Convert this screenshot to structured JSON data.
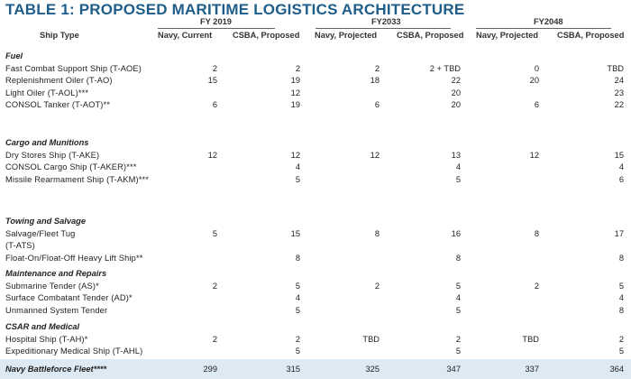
{
  "title": "TABLE 1: PROPOSED MARITIME LOGISTICS ARCHITECTURE",
  "year_groups": [
    "FY 2019",
    "FY2033",
    "FY2048"
  ],
  "columns": [
    "Ship Type",
    "Navy, Current",
    "CSBA, Proposed",
    "Navy, Projected",
    "CSBA, Proposed",
    "Navy, Projected",
    "CSBA, Proposed"
  ],
  "sections": [
    {
      "name": "Fuel",
      "rows": [
        {
          "label": "Fast Combat Support Ship (T-AOE)",
          "values": [
            "2",
            "2",
            "2",
            "2 + TBD",
            "0",
            "TBD"
          ]
        },
        {
          "label": "Replenishment Oiler (T-AO)",
          "values": [
            "15",
            "19",
            "18",
            "22",
            "20",
            "24"
          ]
        },
        {
          "label": "Light Oiler (T-AOL)***",
          "values": [
            "",
            "12",
            "",
            "20",
            "",
            "23"
          ]
        },
        {
          "label": "CONSOL Tanker (T-AOT)**",
          "values": [
            "6",
            "19",
            "6",
            "20",
            "6",
            "22"
          ]
        }
      ]
    },
    {
      "name": "Cargo and Munitions",
      "rows": [
        {
          "label": "Dry Stores Ship (T-AKE)",
          "values": [
            "12",
            "12",
            "12",
            "13",
            "12",
            "15"
          ]
        },
        {
          "label": "CONSOL Cargo Ship (T-AKER)***",
          "values": [
            "",
            "4",
            "",
            "4",
            "",
            "4"
          ]
        },
        {
          "label": "Missile Rearmament Ship (T-AKM)***",
          "values": [
            "",
            "5",
            "",
            "5",
            "",
            "6"
          ]
        }
      ]
    },
    {
      "name": "Towing and Salvage",
      "rows": [
        {
          "label": "Salvage/Fleet Tug",
          "values": [
            "5",
            "15",
            "8",
            "16",
            "8",
            "17"
          ]
        },
        {
          "label": "(T-ATS)",
          "values": [
            "",
            "",
            "",
            "",
            "",
            ""
          ]
        },
        {
          "label": "Float-On/Float-Off Heavy Lift Ship**",
          "values": [
            "",
            "8",
            "",
            "8",
            "",
            "8"
          ]
        }
      ]
    },
    {
      "name": "Maintenance and Repairs",
      "rows": [
        {
          "label": "Submarine Tender (AS)*",
          "values": [
            "2",
            "5",
            "2",
            "5",
            "2",
            "5"
          ]
        },
        {
          "label": "Surface Combatant Tender (AD)*",
          "values": [
            "",
            "4",
            "",
            "4",
            "",
            "4"
          ]
        },
        {
          "label": "Unmanned System Tender",
          "values": [
            "",
            "5",
            "",
            "5",
            "",
            "8"
          ]
        }
      ]
    },
    {
      "name": "CSAR and Medical",
      "rows": [
        {
          "label": "Hospital Ship (T-AH)*",
          "values": [
            "2",
            "2",
            "TBD",
            "2",
            "TBD",
            "2"
          ]
        },
        {
          "label": "Expeditionary Medical Ship (T-AHL)",
          "values": [
            "",
            "5",
            "",
            "5",
            "",
            "5"
          ]
        }
      ]
    }
  ],
  "total": {
    "label": "Navy Battleforce Fleet****",
    "values": [
      "299",
      "315",
      "325",
      "347",
      "337",
      "364"
    ]
  }
}
